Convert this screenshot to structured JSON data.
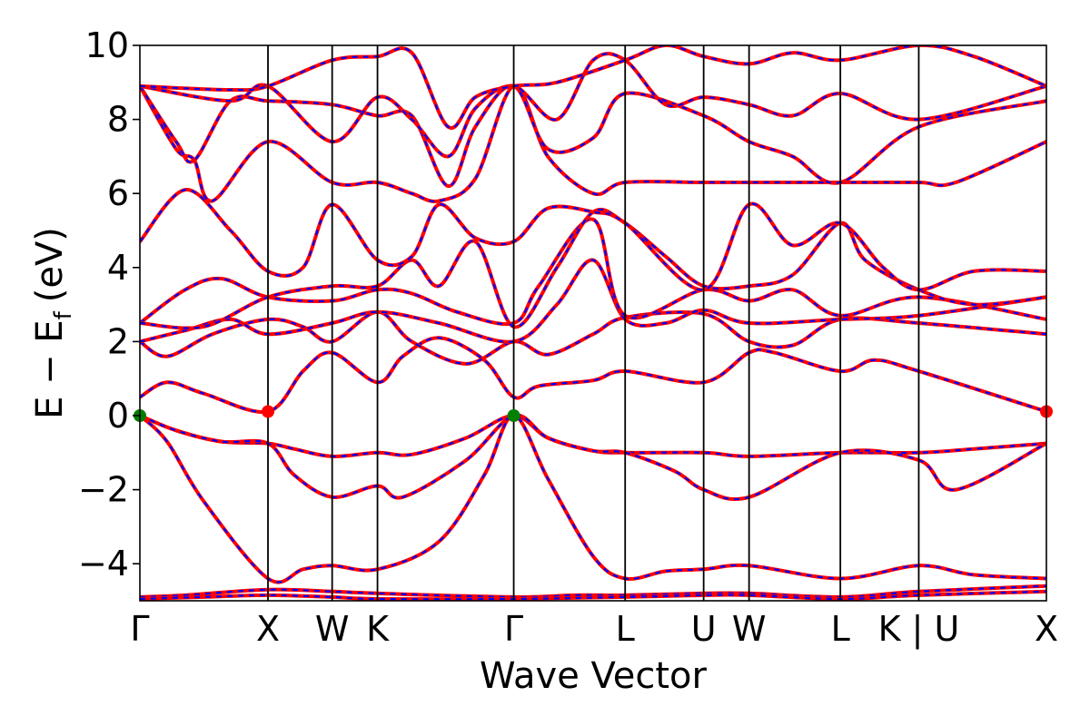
{
  "chart_data": {
    "type": "line",
    "xlabel": "Wave Vector",
    "ylabel": "E − E",
    "ylabel_subscript": "f",
    "ylabel_unit": "(eV)",
    "ylim": [
      -5,
      10
    ],
    "yticks": [
      -4,
      -2,
      0,
      2,
      4,
      6,
      8,
      10
    ],
    "ytick_labels": [
      "−4",
      "−2",
      "0",
      "2",
      "4",
      "6",
      "8",
      "10"
    ],
    "xlim": [
      0,
      1
    ],
    "kpoints": [
      {
        "label": "Γ",
        "x": 0.0
      },
      {
        "label": "X",
        "x": 0.1413
      },
      {
        "label": "W",
        "x": 0.2121
      },
      {
        "label": "K",
        "x": 0.2621
      },
      {
        "label": "Γ",
        "x": 0.4124
      },
      {
        "label": "L",
        "x": 0.5353
      },
      {
        "label": "U",
        "x": 0.6219
      },
      {
        "label": "W",
        "x": 0.672
      },
      {
        "label": "L",
        "x": 0.7727
      },
      {
        "label": "K | U",
        "x": 0.8592
      },
      {
        "label": "X",
        "x": 1.0
      }
    ],
    "series_styles": [
      {
        "color": "#ff0000",
        "style": "solid"
      },
      {
        "color": "#0000ff",
        "style": "dashed"
      }
    ],
    "markers": [
      {
        "x": 0.0,
        "y": 0.0,
        "color": "#008000"
      },
      {
        "x": 0.4124,
        "y": 0.0,
        "color": "#008000"
      },
      {
        "x": 0.1413,
        "y": 0.11,
        "color": "#ff0000"
      },
      {
        "x": 1.0,
        "y": 0.11,
        "color": "#ff0000"
      }
    ],
    "bands": [
      [
        [
          0,
          -4.9
        ],
        [
          0.05,
          -4.85
        ],
        [
          0.1413,
          -4.7
        ],
        [
          0.2121,
          -4.75
        ],
        [
          0.2621,
          -4.8
        ],
        [
          0.4124,
          -4.9
        ],
        [
          0.48,
          -4.85
        ],
        [
          0.5353,
          -4.85
        ],
        [
          0.6219,
          -4.8
        ],
        [
          0.672,
          -4.8
        ],
        [
          0.7727,
          -4.9
        ],
        [
          0.8592,
          -4.75
        ],
        [
          1.0,
          -4.6
        ]
      ],
      [
        [
          0,
          -4.95
        ],
        [
          0.07,
          -4.9
        ],
        [
          0.1413,
          -4.85
        ],
        [
          0.2121,
          -4.9
        ],
        [
          0.2621,
          -4.95
        ],
        [
          0.4124,
          -4.95
        ],
        [
          0.5353,
          -4.9
        ],
        [
          0.6219,
          -4.85
        ],
        [
          0.672,
          -4.85
        ],
        [
          0.7727,
          -4.95
        ],
        [
          0.8592,
          -4.85
        ],
        [
          1.0,
          -4.75
        ]
      ],
      [
        [
          0,
          0.0
        ],
        [
          0.03,
          -0.7
        ],
        [
          0.07,
          -2.3
        ],
        [
          0.1413,
          -4.4
        ],
        [
          0.18,
          -4.15
        ],
        [
          0.2121,
          -4.05
        ],
        [
          0.2621,
          -4.15
        ],
        [
          0.33,
          -3.4
        ],
        [
          0.38,
          -1.6
        ],
        [
          0.4124,
          0.0
        ],
        [
          0.45,
          -1.7
        ],
        [
          0.5,
          -3.8
        ],
        [
          0.5353,
          -4.4
        ],
        [
          0.58,
          -4.2
        ],
        [
          0.6219,
          -4.15
        ],
        [
          0.672,
          -4.05
        ],
        [
          0.7727,
          -4.4
        ],
        [
          0.8592,
          -4.05
        ],
        [
          0.92,
          -4.3
        ],
        [
          1.0,
          -4.4
        ]
      ],
      [
        [
          0,
          0.0
        ],
        [
          0.04,
          -0.4
        ],
        [
          0.09,
          -0.7
        ],
        [
          0.1413,
          -0.75
        ],
        [
          0.17,
          -0.9
        ],
        [
          0.2121,
          -1.1
        ],
        [
          0.2621,
          -1.0
        ],
        [
          0.3,
          -1.05
        ],
        [
          0.36,
          -0.6
        ],
        [
          0.4124,
          0.0
        ],
        [
          0.45,
          -0.6
        ],
        [
          0.5,
          -0.95
        ],
        [
          0.5353,
          -1.0
        ],
        [
          0.6219,
          -1.0
        ],
        [
          0.672,
          -1.1
        ],
        [
          0.7727,
          -1.0
        ],
        [
          0.8592,
          -1.0
        ],
        [
          0.92,
          -0.9
        ],
        [
          1.0,
          -0.75
        ]
      ],
      [
        [
          0,
          0.0
        ],
        [
          0.04,
          -0.4
        ],
        [
          0.09,
          -0.7
        ],
        [
          0.1413,
          -0.75
        ],
        [
          0.17,
          -1.6
        ],
        [
          0.2121,
          -2.2
        ],
        [
          0.2621,
          -1.9
        ],
        [
          0.29,
          -2.2
        ],
        [
          0.36,
          -1.2
        ],
        [
          0.4124,
          0.0
        ],
        [
          0.45,
          -0.6
        ],
        [
          0.5,
          -0.95
        ],
        [
          0.5353,
          -1.0
        ],
        [
          0.59,
          -1.5
        ],
        [
          0.6219,
          -2.0
        ],
        [
          0.672,
          -2.2
        ],
        [
          0.7727,
          -1.0
        ],
        [
          0.8592,
          -1.2
        ],
        [
          0.9,
          -2.0
        ],
        [
          1.0,
          -0.75
        ]
      ],
      [
        [
          0,
          0.5
        ],
        [
          0.03,
          0.9
        ],
        [
          0.07,
          0.6
        ],
        [
          0.1413,
          0.11
        ],
        [
          0.18,
          1.2
        ],
        [
          0.2121,
          1.7
        ],
        [
          0.2621,
          0.9
        ],
        [
          0.29,
          1.6
        ],
        [
          0.33,
          2.1
        ],
        [
          0.38,
          1.5
        ],
        [
          0.4124,
          0.5
        ],
        [
          0.44,
          0.8
        ],
        [
          0.5,
          0.95
        ],
        [
          0.5353,
          1.2
        ],
        [
          0.6219,
          0.9
        ],
        [
          0.672,
          1.7
        ],
        [
          0.7,
          1.7
        ],
        [
          0.7727,
          1.2
        ],
        [
          0.81,
          1.5
        ],
        [
          0.8592,
          1.2
        ],
        [
          1.0,
          0.11
        ]
      ],
      [
        [
          0,
          2.0
        ],
        [
          0.03,
          1.6
        ],
        [
          0.08,
          2.2
        ],
        [
          0.1413,
          2.6
        ],
        [
          0.18,
          2.4
        ],
        [
          0.2121,
          2.0
        ],
        [
          0.2621,
          2.8
        ],
        [
          0.3,
          2.0
        ],
        [
          0.36,
          1.4
        ],
        [
          0.4124,
          2.0
        ],
        [
          0.45,
          1.65
        ],
        [
          0.5,
          2.2
        ],
        [
          0.5353,
          2.65
        ],
        [
          0.6219,
          2.75
        ],
        [
          0.672,
          2.0
        ],
        [
          0.72,
          1.9
        ],
        [
          0.7727,
          2.6
        ],
        [
          0.8592,
          2.5
        ],
        [
          1.0,
          2.2
        ]
      ],
      [
        [
          0,
          2.0
        ],
        [
          0.05,
          2.3
        ],
        [
          0.1,
          2.6
        ],
        [
          0.1413,
          2.2
        ],
        [
          0.2121,
          2.5
        ],
        [
          0.2621,
          2.8
        ],
        [
          0.33,
          2.5
        ],
        [
          0.4124,
          2.0
        ],
        [
          0.46,
          3.0
        ],
        [
          0.5,
          4.2
        ],
        [
          0.5353,
          2.6
        ],
        [
          0.58,
          2.5
        ],
        [
          0.6219,
          2.85
        ],
        [
          0.672,
          2.5
        ],
        [
          0.7727,
          2.6
        ],
        [
          0.8592,
          2.7
        ],
        [
          1.0,
          3.2
        ]
      ],
      [
        [
          0,
          2.5
        ],
        [
          0.05,
          3.4
        ],
        [
          0.09,
          3.7
        ],
        [
          0.1413,
          3.2
        ],
        [
          0.2121,
          3.1
        ],
        [
          0.2621,
          3.4
        ],
        [
          0.3,
          3.3
        ],
        [
          0.35,
          2.8
        ],
        [
          0.4124,
          2.5
        ],
        [
          0.44,
          3.5
        ],
        [
          0.5,
          5.3
        ],
        [
          0.5353,
          2.7
        ],
        [
          0.6219,
          3.4
        ],
        [
          0.672,
          3.1
        ],
        [
          0.72,
          3.4
        ],
        [
          0.7727,
          2.7
        ],
        [
          0.8592,
          3.2
        ],
        [
          1.0,
          2.6
        ]
      ],
      [
        [
          0,
          2.5
        ],
        [
          0.07,
          2.4
        ],
        [
          0.1413,
          3.2
        ],
        [
          0.2121,
          3.5
        ],
        [
          0.2621,
          3.5
        ],
        [
          0.3,
          4.2
        ],
        [
          0.33,
          3.5
        ],
        [
          0.37,
          4.7
        ],
        [
          0.4124,
          2.4
        ],
        [
          0.46,
          4.0
        ],
        [
          0.5,
          5.5
        ],
        [
          0.5353,
          5.2
        ],
        [
          0.58,
          4.3
        ],
        [
          0.6219,
          3.5
        ],
        [
          0.672,
          3.5
        ],
        [
          0.72,
          3.8
        ],
        [
          0.7727,
          5.2
        ],
        [
          0.8,
          4.2
        ],
        [
          0.8592,
          3.4
        ],
        [
          0.92,
          3.0
        ],
        [
          1.0,
          3.2
        ]
      ],
      [
        [
          0,
          4.7
        ],
        [
          0.05,
          6.1
        ],
        [
          0.1,
          5.0
        ],
        [
          0.1413,
          3.9
        ],
        [
          0.18,
          4.0
        ],
        [
          0.2121,
          5.7
        ],
        [
          0.2621,
          4.2
        ],
        [
          0.3,
          4.3
        ],
        [
          0.33,
          5.7
        ],
        [
          0.37,
          4.8
        ],
        [
          0.4124,
          4.7
        ],
        [
          0.45,
          5.6
        ],
        [
          0.5,
          5.5
        ],
        [
          0.5353,
          5.2
        ],
        [
          0.6219,
          3.4
        ],
        [
          0.672,
          5.7
        ],
        [
          0.72,
          4.6
        ],
        [
          0.7727,
          5.2
        ],
        [
          0.82,
          4.0
        ],
        [
          0.8592,
          3.4
        ],
        [
          0.92,
          3.9
        ],
        [
          1.0,
          3.9
        ]
      ],
      [
        [
          0,
          8.9
        ],
        [
          0.04,
          7.2
        ],
        [
          0.06,
          6.9
        ],
        [
          0.08,
          5.8
        ],
        [
          0.1413,
          7.4
        ],
        [
          0.2121,
          6.3
        ],
        [
          0.2621,
          6.3
        ],
        [
          0.3,
          6.0
        ],
        [
          0.33,
          5.8
        ],
        [
          0.37,
          6.4
        ],
        [
          0.4124,
          8.9
        ],
        [
          0.45,
          7.0
        ],
        [
          0.5,
          6.0
        ],
        [
          0.5353,
          6.3
        ],
        [
          0.6219,
          6.3
        ],
        [
          0.672,
          6.3
        ],
        [
          0.7727,
          6.3
        ],
        [
          0.8592,
          6.3
        ],
        [
          0.9,
          6.3
        ],
        [
          1.0,
          7.4
        ]
      ],
      [
        [
          0,
          8.9
        ],
        [
          0.04,
          7.4
        ],
        [
          0.06,
          6.9
        ],
        [
          0.1,
          8.5
        ],
        [
          0.1413,
          8.5
        ],
        [
          0.2121,
          8.4
        ],
        [
          0.2621,
          8.1
        ],
        [
          0.3,
          8.1
        ],
        [
          0.34,
          6.2
        ],
        [
          0.37,
          7.8
        ],
        [
          0.4124,
          8.9
        ],
        [
          0.45,
          7.2
        ],
        [
          0.5,
          7.5
        ],
        [
          0.5353,
          8.7
        ],
        [
          0.6219,
          8.1
        ],
        [
          0.672,
          7.4
        ],
        [
          0.72,
          7.0
        ],
        [
          0.7727,
          6.3
        ],
        [
          0.8592,
          7.8
        ],
        [
          1.0,
          8.5
        ]
      ],
      [
        [
          0,
          8.9
        ],
        [
          0.1,
          8.5
        ],
        [
          0.1413,
          8.9
        ],
        [
          0.2121,
          7.4
        ],
        [
          0.2621,
          8.6
        ],
        [
          0.3,
          8.0
        ],
        [
          0.34,
          7.0
        ],
        [
          0.37,
          8.3
        ],
        [
          0.4124,
          8.9
        ],
        [
          0.46,
          8.0
        ],
        [
          0.5,
          9.6
        ],
        [
          0.5353,
          9.6
        ],
        [
          0.58,
          8.4
        ],
        [
          0.6219,
          8.6
        ],
        [
          0.672,
          8.4
        ],
        [
          0.72,
          8.1
        ],
        [
          0.7727,
          8.7
        ],
        [
          0.8592,
          8.0
        ],
        [
          1.0,
          8.9
        ]
      ],
      [
        [
          0,
          8.9
        ],
        [
          0.1,
          8.8
        ],
        [
          0.1413,
          8.9
        ],
        [
          0.2121,
          9.6
        ],
        [
          0.2621,
          9.7
        ],
        [
          0.3,
          9.8
        ],
        [
          0.34,
          7.8
        ],
        [
          0.37,
          8.6
        ],
        [
          0.4124,
          8.9
        ],
        [
          0.46,
          9.0
        ],
        [
          0.5353,
          9.6
        ],
        [
          0.58,
          10.0
        ],
        [
          0.6219,
          9.7
        ],
        [
          0.672,
          9.5
        ],
        [
          0.72,
          9.8
        ],
        [
          0.7727,
          9.6
        ],
        [
          0.8592,
          10.0
        ],
        [
          0.92,
          9.7
        ],
        [
          1.0,
          8.9
        ]
      ]
    ]
  }
}
